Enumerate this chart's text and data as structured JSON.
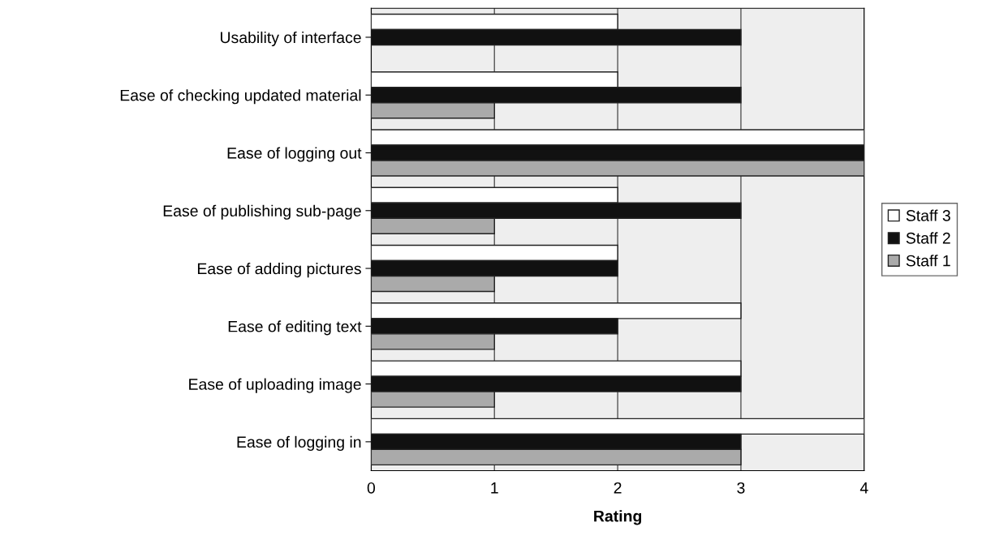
{
  "chart_data": {
    "type": "bar",
    "orientation": "horizontal",
    "xlabel": "Rating",
    "categories": [
      "Usability of interface",
      "Ease of checking updated material",
      "Ease of logging out",
      "Ease of publishing sub-page",
      "Ease of adding pictures",
      "Ease of editing text",
      "Ease of uploading image",
      "Ease of logging in"
    ],
    "series": [
      {
        "name": "Staff 3",
        "color": "#ffffff",
        "values": [
          2,
          2,
          4,
          2,
          2,
          3,
          3,
          4
        ]
      },
      {
        "name": "Staff 2",
        "color": "#111111",
        "values": [
          3,
          3,
          4,
          3,
          2,
          2,
          3,
          3
        ]
      },
      {
        "name": "Staff 1",
        "color": "#aaaaaa",
        "values": [
          null,
          1,
          4,
          1,
          1,
          1,
          1,
          3
        ]
      }
    ],
    "xlim": [
      0,
      4
    ],
    "xticks": [
      0,
      1,
      2,
      3,
      4
    ],
    "grid": "x",
    "legend": "right"
  }
}
